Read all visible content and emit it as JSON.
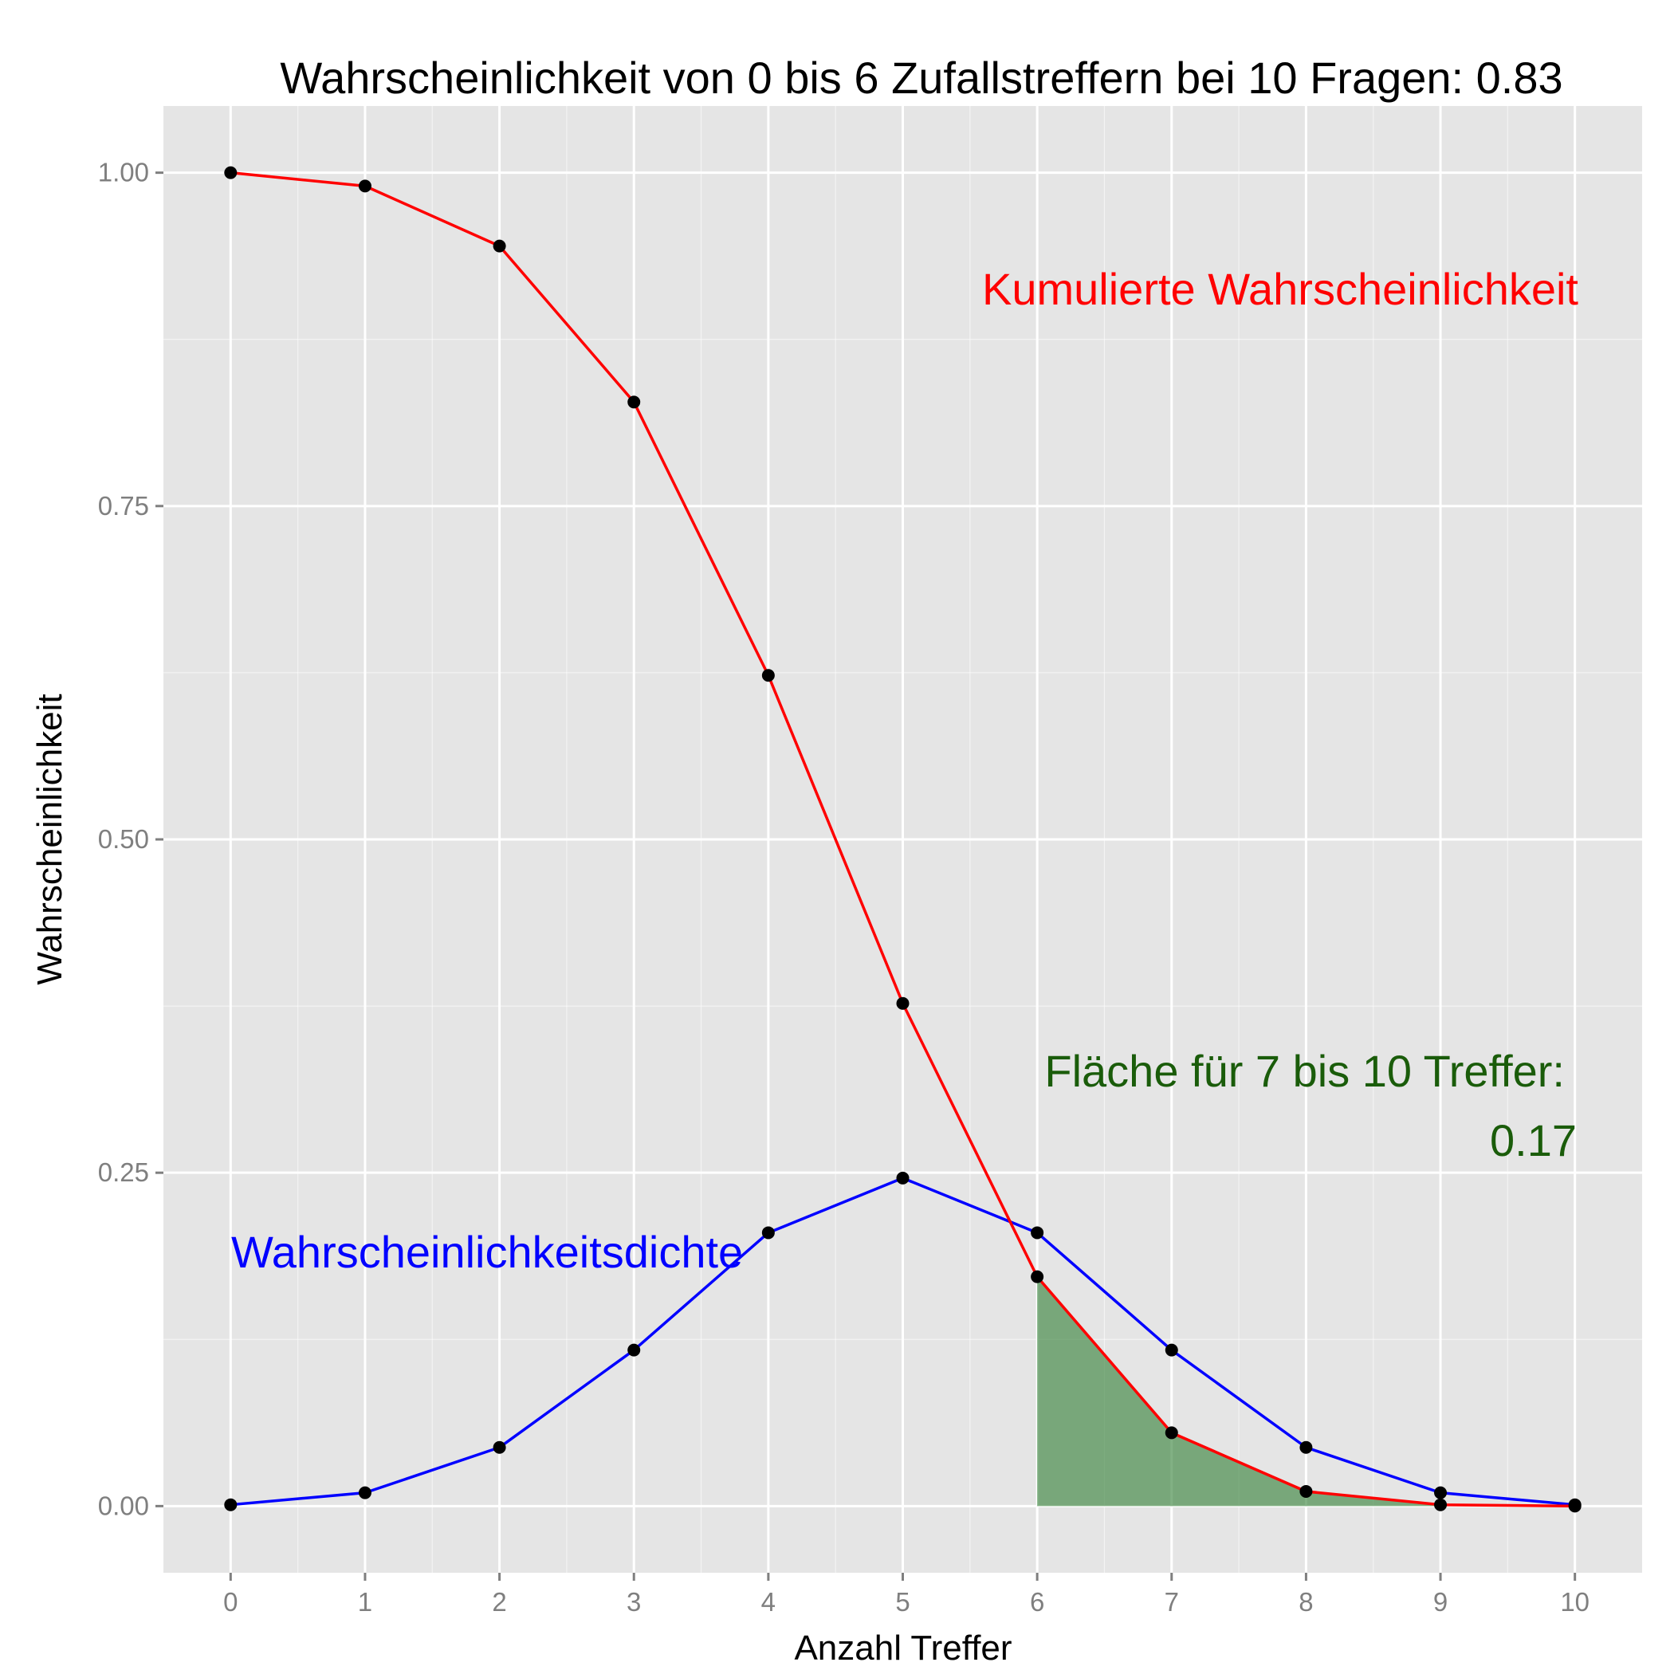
{
  "chart_data": {
    "type": "line",
    "title": "Wahrscheinlichkeit von 0 bis  6  Zufallstreffern bei  10  Fragen:  0.83",
    "xlabel": "Anzahl Treffer",
    "ylabel": "Wahrscheinlichkeit",
    "xlim": [
      -0.5,
      10.5
    ],
    "ylim": [
      -0.05,
      1.05
    ],
    "x": [
      0,
      1,
      2,
      3,
      4,
      5,
      6,
      7,
      8,
      9,
      10
    ],
    "x_ticks": [
      "0",
      "1",
      "2",
      "3",
      "4",
      "5",
      "6",
      "7",
      "8",
      "9",
      "10"
    ],
    "y_ticks": [
      {
        "value": 0,
        "label": "0.00"
      },
      {
        "value": 0.25,
        "label": "0.25"
      },
      {
        "value": 0.5,
        "label": "0.50"
      },
      {
        "value": 0.75,
        "label": "0.75"
      },
      {
        "value": 1,
        "label": "1.00"
      }
    ],
    "grid": true,
    "series": [
      {
        "name": "Kumulierte Wahrscheinlichkeit",
        "color": "#FF0000",
        "values": [
          1.0,
          0.99,
          0.945,
          0.828,
          0.623,
          0.377,
          0.172,
          0.055,
          0.011,
          0.001,
          0.0
        ]
      },
      {
        "name": "Wahrscheinlichkeitsdichte",
        "color": "#0000FF",
        "values": [
          0.001,
          0.01,
          0.044,
          0.117,
          0.205,
          0.246,
          0.205,
          0.117,
          0.044,
          0.01,
          0.001
        ]
      }
    ],
    "shaded_area": {
      "from_x": 6,
      "to_x": 10,
      "follows_series": "Kumulierte Wahrscheinlichkeit",
      "color": "#2E7D32",
      "label_line1": "Fläche für  7  bis  10 Treffer:",
      "label_line2": "0.17",
      "label_color": "#1A5C0A"
    },
    "point_color": "#000000",
    "panel_background": "#E5E5E5",
    "grid_color": "#FFFFFF"
  }
}
